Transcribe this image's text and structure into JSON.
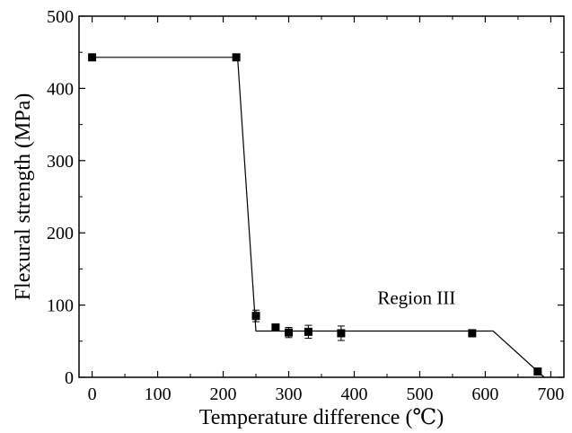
{
  "chart_data": {
    "type": "scatter",
    "xlabel": "Temperature difference (℃)",
    "ylabel": "Flexural strength (MPa)",
    "xlim": [
      -20,
      720
    ],
    "ylim": [
      0,
      500
    ],
    "xticks": [
      0,
      100,
      200,
      300,
      400,
      500,
      600,
      700
    ],
    "yticks": [
      0,
      100,
      200,
      300,
      400,
      500
    ],
    "grid": false,
    "series": [
      {
        "marker": "square",
        "color": "#000000",
        "points": [
          {
            "x": 0,
            "y": 443,
            "err": 0
          },
          {
            "x": 220,
            "y": 443,
            "err": 0
          },
          {
            "x": 250,
            "y": 85,
            "err": 8
          },
          {
            "x": 280,
            "y": 69,
            "err": 0
          },
          {
            "x": 300,
            "y": 62,
            "err": 7
          },
          {
            "x": 330,
            "y": 63,
            "err": 9
          },
          {
            "x": 380,
            "y": 61,
            "err": 10
          },
          {
            "x": 580,
            "y": 61,
            "err": 5
          },
          {
            "x": 680,
            "y": 8,
            "err": 0
          }
        ]
      }
    ],
    "fit_line": [
      {
        "x": 0,
        "y": 443
      },
      {
        "x": 222,
        "y": 443
      },
      {
        "x": 250,
        "y": 64
      },
      {
        "x": 612,
        "y": 64
      },
      {
        "x": 690,
        "y": 0
      }
    ],
    "annotations": [
      {
        "text": "Region III",
        "x": 495,
        "y": 100
      }
    ]
  }
}
